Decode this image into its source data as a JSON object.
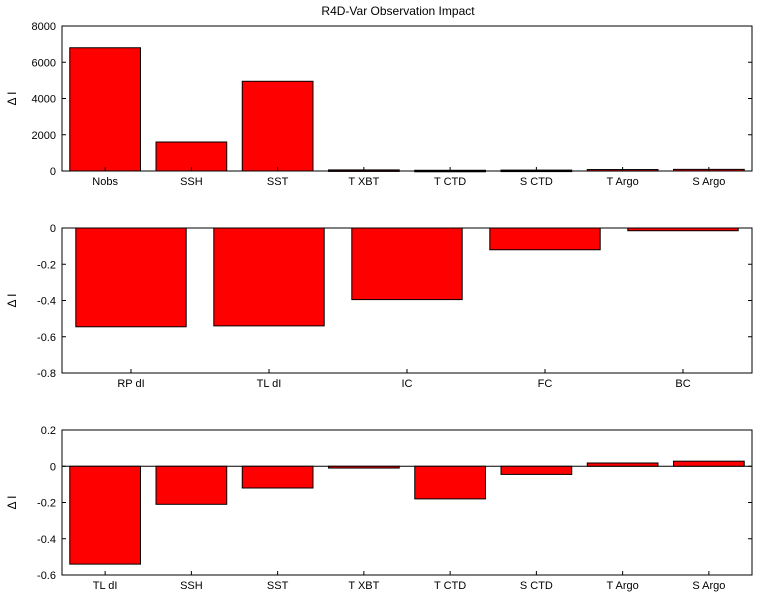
{
  "title": "R4D-Var Observation Impact",
  "bar_color": "#ff0000",
  "chart_data": [
    {
      "type": "bar",
      "title": "R4D-Var Observation Impact",
      "ylabel": "Δ I",
      "ylim": [
        0,
        8000
      ],
      "yticks": [
        0,
        2000,
        4000,
        6000,
        8000
      ],
      "ytick_labels": [
        "0",
        "2000",
        "4000",
        "6000",
        "8000"
      ],
      "categories": [
        "Nobs",
        "SSH",
        "SST",
        "T XBT",
        "T CTD",
        "S CTD",
        "T Argo",
        "S Argo"
      ],
      "values": [
        6800,
        1600,
        4950,
        60,
        40,
        50,
        80,
        90
      ]
    },
    {
      "type": "bar",
      "title": "",
      "ylabel": "Δ I",
      "ylim": [
        -0.8,
        0
      ],
      "yticks": [
        -0.8,
        -0.6,
        -0.4,
        -0.2,
        0
      ],
      "ytick_labels": [
        "-0.8",
        "-0.6",
        "-0.4",
        "-0.2",
        "0"
      ],
      "categories": [
        "RP dI",
        "TL dI",
        "IC",
        "FC",
        "BC"
      ],
      "values": [
        -0.545,
        -0.54,
        -0.395,
        -0.12,
        -0.015
      ]
    },
    {
      "type": "bar",
      "title": "",
      "ylabel": "Δ I",
      "ylim": [
        -0.6,
        0.2
      ],
      "yticks": [
        -0.6,
        -0.4,
        -0.2,
        0,
        0.2
      ],
      "ytick_labels": [
        "-0.6",
        "-0.4",
        "-0.2",
        "0",
        "0.2"
      ],
      "categories": [
        "TL dI",
        "SSH",
        "SST",
        "T XBT",
        "T CTD",
        "S CTD",
        "T Argo",
        "S Argo"
      ],
      "values": [
        -0.54,
        -0.21,
        -0.12,
        -0.01,
        -0.18,
        -0.045,
        0.018,
        0.028
      ]
    }
  ]
}
